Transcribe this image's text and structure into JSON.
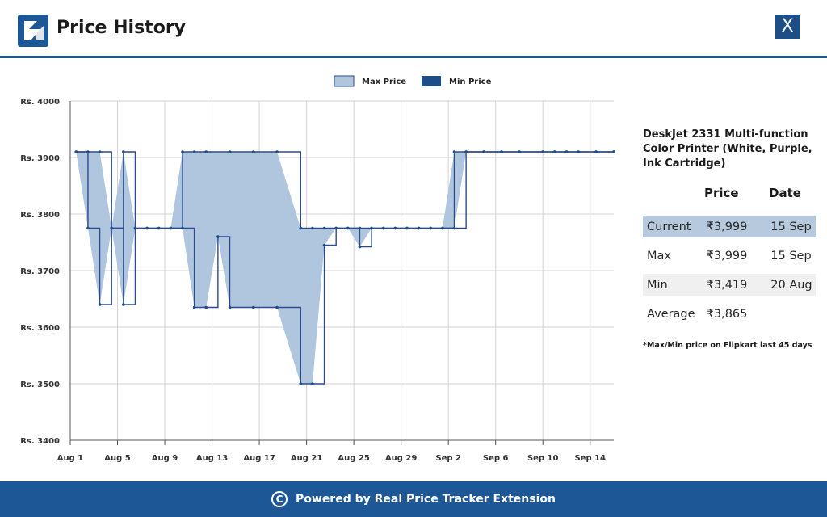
{
  "header": {
    "title": "Price History",
    "close_label": "X",
    "logo_icon": "price-tracker-logo-icon"
  },
  "chart_data": {
    "type": "area",
    "legend": [
      "Max Price",
      "Min Price"
    ],
    "legend_placement": "top-center",
    "colors": {
      "max": "#b0c6de",
      "min": "#1d4e86",
      "line": "#2c4a8f"
    },
    "ylim": [
      3400,
      4000
    ],
    "y_ticks": [
      3400,
      3500,
      3600,
      3700,
      3800,
      3900,
      4000
    ],
    "y_tick_labels": [
      "Rs. 3400",
      "Rs. 3500",
      "Rs. 3600",
      "Rs. 3700",
      "Rs. 3800",
      "Rs. 3900",
      "Rs. 4000"
    ],
    "x_tick_labels": [
      "Aug 1",
      "Aug 5",
      "Aug 9",
      "Aug 13",
      "Aug 17",
      "Aug 21",
      "Aug 25",
      "Aug 29",
      "Sep 2",
      "Sep 6",
      "Sep 10",
      "Sep 14"
    ],
    "x_tick_days": [
      0,
      4,
      8,
      12,
      16,
      20,
      24,
      28,
      32,
      36,
      40,
      44
    ],
    "grid": true,
    "series": [
      {
        "name": "Max Price",
        "points": [
          [
            0.5,
            3910
          ],
          [
            1.5,
            3910
          ],
          [
            2.5,
            3910
          ],
          [
            3.5,
            3775
          ],
          [
            4.5,
            3910
          ],
          [
            5.5,
            3775
          ],
          [
            6.5,
            3775
          ],
          [
            7.5,
            3775
          ],
          [
            8.5,
            3775
          ],
          [
            9.5,
            3910
          ],
          [
            10.5,
            3910
          ],
          [
            11.5,
            3910
          ],
          [
            13.5,
            3910
          ],
          [
            15.5,
            3910
          ],
          [
            17.5,
            3910
          ],
          [
            19.5,
            3775
          ],
          [
            20.5,
            3775
          ],
          [
            21.5,
            3775
          ],
          [
            22.5,
            3775
          ],
          [
            23.5,
            3775
          ],
          [
            24.5,
            3775
          ],
          [
            25.5,
            3775
          ],
          [
            26.5,
            3775
          ],
          [
            27.5,
            3775
          ],
          [
            28.5,
            3775
          ],
          [
            29.5,
            3775
          ],
          [
            30.5,
            3775
          ],
          [
            31.5,
            3775
          ],
          [
            32.5,
            3910
          ],
          [
            33.5,
            3910
          ],
          [
            35,
            3910
          ],
          [
            36.5,
            3910
          ],
          [
            38,
            3910
          ],
          [
            40,
            3910
          ],
          [
            41,
            3910
          ],
          [
            42,
            3910
          ],
          [
            43,
            3910
          ],
          [
            44.5,
            3910
          ],
          [
            46,
            3910
          ]
        ]
      },
      {
        "name": "Min Price",
        "points": [
          [
            0.5,
            3910
          ],
          [
            1.5,
            3775
          ],
          [
            2.5,
            3640
          ],
          [
            3.5,
            3775
          ],
          [
            4.5,
            3640
          ],
          [
            5.5,
            3775
          ],
          [
            6.5,
            3775
          ],
          [
            7.5,
            3775
          ],
          [
            8.5,
            3775
          ],
          [
            9.5,
            3775
          ],
          [
            10.5,
            3635
          ],
          [
            11.5,
            3635
          ],
          [
            12.5,
            3760
          ],
          [
            13.5,
            3635
          ],
          [
            15.5,
            3635
          ],
          [
            17.5,
            3635
          ],
          [
            19.5,
            3500
          ],
          [
            20.5,
            3500
          ],
          [
            21.5,
            3745
          ],
          [
            22.5,
            3775
          ],
          [
            23.5,
            3775
          ],
          [
            24.5,
            3742
          ],
          [
            25.5,
            3775
          ],
          [
            26.5,
            3775
          ],
          [
            27.5,
            3775
          ],
          [
            28.5,
            3775
          ],
          [
            29.5,
            3775
          ],
          [
            30.5,
            3775
          ],
          [
            31.5,
            3775
          ],
          [
            32.5,
            3775
          ],
          [
            33.5,
            3910
          ],
          [
            35,
            3910
          ],
          [
            36.5,
            3910
          ],
          [
            38,
            3910
          ],
          [
            40,
            3910
          ],
          [
            41,
            3910
          ],
          [
            42,
            3910
          ],
          [
            43,
            3910
          ],
          [
            44.5,
            3910
          ],
          [
            46,
            3910
          ]
        ]
      }
    ]
  },
  "product": {
    "name": "DeskJet 2331 Multi-function Color Printer (White, Purple, Ink Cartridge)"
  },
  "table": {
    "headers": [
      "",
      "Price",
      "Date"
    ],
    "rows": [
      {
        "label": "Current",
        "price": "₹3,999",
        "date": "15 Sep"
      },
      {
        "label": "Max",
        "price": "₹3,999",
        "date": "15 Sep"
      },
      {
        "label": "Min",
        "price": "₹3,419",
        "date": "20 Aug"
      },
      {
        "label": "Average",
        "price": "₹3,865",
        "date": ""
      }
    ]
  },
  "note": "*Max/Min price on Flipkart last 45 days",
  "footer": {
    "text": "Powered by Real Price Tracker Extension",
    "icon": "copyright-icon",
    "icon_glyph": "C"
  }
}
